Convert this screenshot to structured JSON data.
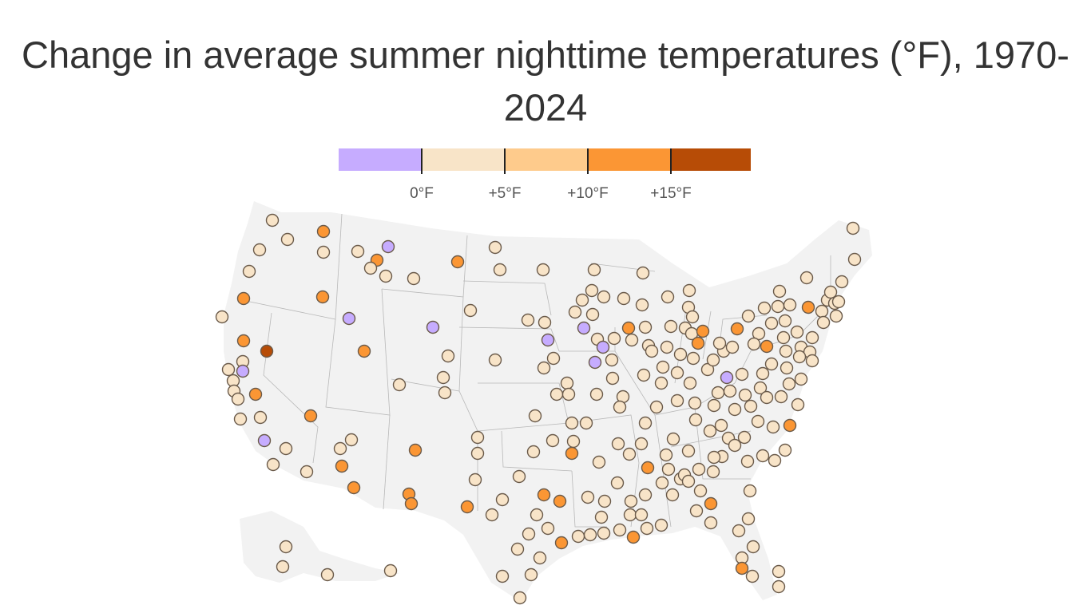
{
  "title": "Change in average summer nighttime temperatures (°F), 1970-2024",
  "legend": {
    "labels": [
      "0°F",
      "+5°F",
      "+10°F",
      "+15°F"
    ],
    "bins": [
      {
        "range": "< 0°F",
        "color": "#c6acff"
      },
      {
        "range": "0–5°F",
        "color": "#f8e4c8"
      },
      {
        "range": "5–10°F",
        "color": "#fecb8c"
      },
      {
        "range": "10–15°F",
        "color": "#fb9634"
      },
      {
        "range": "> 15°F",
        "color": "#b74c06"
      }
    ]
  },
  "map": {
    "land_color": "#f2f2f2",
    "border_color": "#b8b8b8",
    "marker_stroke": "#6a5a4a"
  }
}
